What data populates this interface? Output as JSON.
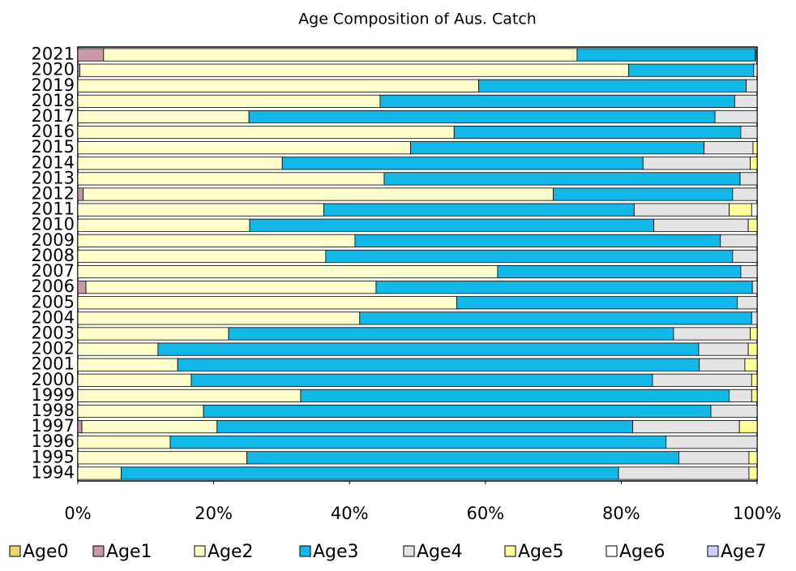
{
  "chart_data": {
    "type": "stacked-barh",
    "title": "Age Composition of Aus. Catch",
    "categories": [
      "1994",
      "1995",
      "1996",
      "1997",
      "1998",
      "1999",
      "2000",
      "2001",
      "2002",
      "2003",
      "2004",
      "2005",
      "2006",
      "2007",
      "2008",
      "2009",
      "2010",
      "2011",
      "2012",
      "2013",
      "2014",
      "2015",
      "2016",
      "2017",
      "2018",
      "2019",
      "2020",
      "2021"
    ],
    "series": [
      {
        "name": "Age0",
        "color": "#e8d870",
        "values": [
          0,
          0,
          0,
          0,
          0,
          0,
          0,
          0,
          0,
          0,
          0,
          0,
          0,
          0,
          0,
          0,
          0,
          0,
          0,
          0,
          0,
          0,
          0,
          0,
          0,
          0,
          0,
          0
        ]
      },
      {
        "name": "Age1",
        "color": "#c89aa8",
        "values": [
          0,
          0,
          0,
          0.6,
          0,
          0,
          0,
          0,
          0,
          0,
          0,
          0,
          1.2,
          0,
          0,
          0,
          0,
          0,
          0.8,
          0,
          0,
          0,
          0,
          0,
          0,
          0,
          0.3,
          3.8
        ]
      },
      {
        "name": "Age2",
        "color": "#ffffcc",
        "values": [
          6.4,
          24.9,
          13.6,
          19.9,
          18.5,
          32.8,
          16.7,
          14.7,
          11.8,
          22.2,
          41.5,
          55.8,
          42.7,
          61.8,
          36.5,
          40.8,
          25.3,
          36.2,
          69.2,
          45.1,
          30.1,
          49.0,
          55.4,
          25.2,
          44.5,
          59.0,
          80.8,
          69.7
        ]
      },
      {
        "name": "Age3",
        "color": "#12b8e8",
        "values": [
          73.2,
          63.6,
          73.0,
          61.2,
          74.7,
          63.1,
          67.9,
          76.8,
          79.6,
          65.5,
          57.7,
          41.3,
          55.4,
          35.8,
          59.9,
          53.8,
          59.5,
          45.7,
          26.4,
          52.4,
          53.1,
          43.2,
          42.2,
          68.6,
          52.2,
          39.4,
          18.4,
          26.2
        ]
      },
      {
        "name": "Age4",
        "color": "#e4e4e4",
        "values": [
          19.2,
          10.3,
          13.4,
          15.7,
          6.8,
          3.3,
          14.6,
          6.7,
          7.3,
          11.3,
          0.8,
          2.9,
          0.7,
          2.4,
          3.6,
          5.4,
          13.9,
          14.0,
          3.6,
          2.5,
          15.8,
          7.2,
          2.4,
          6.2,
          3.3,
          1.6,
          0.5,
          0.1
        ]
      },
      {
        "name": "Age5",
        "color": "#ffff99",
        "values": [
          1.2,
          1.2,
          0,
          2.6,
          0,
          0.8,
          0.8,
          1.8,
          1.3,
          1.0,
          0,
          0,
          0,
          0,
          0,
          0,
          1.3,
          3.3,
          0,
          0,
          1.0,
          0.6,
          0,
          0,
          0,
          0,
          0,
          0
        ]
      },
      {
        "name": "Age6",
        "color": "#ffffff",
        "values": [
          0,
          0,
          0,
          0,
          0,
          0,
          0,
          0,
          0,
          0,
          0,
          0,
          0,
          0,
          0,
          0,
          0,
          0.8,
          0,
          0,
          0,
          0,
          0,
          0,
          0,
          0,
          0,
          0
        ]
      },
      {
        "name": "Age7",
        "color": "#ccccff",
        "values": [
          0,
          0,
          0,
          0,
          0,
          0,
          0,
          0,
          0,
          0,
          0,
          0,
          0,
          0,
          0,
          0,
          0,
          0,
          0,
          0,
          0,
          0,
          0,
          0,
          0,
          0,
          0,
          0
        ]
      }
    ],
    "xlim": [
      0,
      100
    ],
    "xticks": [
      {
        "value": 0,
        "label": "0%"
      },
      {
        "value": 20,
        "label": "20%"
      },
      {
        "value": 40,
        "label": "40%"
      },
      {
        "value": 60,
        "label": "60%"
      },
      {
        "value": 80,
        "label": "80%"
      },
      {
        "value": 100,
        "label": "100%"
      }
    ]
  }
}
